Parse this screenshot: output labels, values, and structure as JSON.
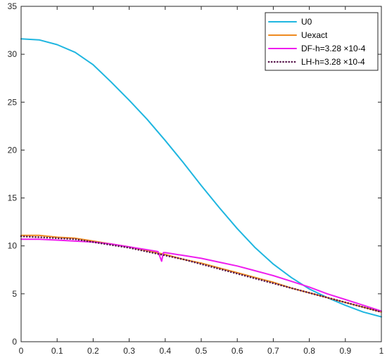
{
  "chart_data": {
    "type": "line",
    "title": "",
    "xlabel": "",
    "ylabel": "",
    "xlim": [
      0,
      1
    ],
    "ylim": [
      0,
      35
    ],
    "xticks": [
      0,
      0.1,
      0.2,
      0.3,
      0.4,
      0.5,
      0.6,
      0.7,
      0.8,
      0.9,
      1
    ],
    "xtick_labels": [
      "0",
      "0.1",
      "0.2",
      "0.3",
      "0.4",
      "0.5",
      "0.6",
      "0.7",
      "0.8",
      "0.9",
      "1"
    ],
    "yticks": [
      0,
      5,
      10,
      15,
      20,
      25,
      30,
      35
    ],
    "ytick_labels": [
      "0",
      "5",
      "10",
      "15",
      "20",
      "25",
      "30",
      "35"
    ],
    "grid": false,
    "legend_position": "top-right",
    "series": [
      {
        "name": "U0",
        "color": "#1fb6e0",
        "line_style": "solid",
        "x": [
          0,
          0.05,
          0.1,
          0.15,
          0.2,
          0.25,
          0.3,
          0.35,
          0.4,
          0.45,
          0.5,
          0.55,
          0.6,
          0.65,
          0.7,
          0.75,
          0.8,
          0.85,
          0.9,
          0.95,
          1
        ],
        "y": [
          31.6,
          31.5,
          31.0,
          30.2,
          28.9,
          27.1,
          25.2,
          23.2,
          21.0,
          18.7,
          16.3,
          14.0,
          11.8,
          9.8,
          8.1,
          6.7,
          5.5,
          4.6,
          3.8,
          3.1,
          2.6
        ]
      },
      {
        "name": "Uexact",
        "color": "#ee8a1f",
        "line_style": "solid",
        "x": [
          0,
          0.05,
          0.1,
          0.15,
          0.2,
          0.25,
          0.3,
          0.35,
          0.4,
          0.45,
          0.5,
          0.55,
          0.6,
          0.65,
          0.7,
          0.75,
          0.8,
          0.85,
          0.9,
          0.95,
          1
        ],
        "y": [
          11.1,
          11.1,
          10.9,
          10.8,
          10.5,
          10.2,
          9.9,
          9.5,
          9.1,
          8.6,
          8.2,
          7.7,
          7.2,
          6.7,
          6.2,
          5.6,
          5.1,
          4.6,
          4.1,
          3.6,
          3.1
        ]
      },
      {
        "name": "DF-h=3.28 ×10-4",
        "color": "#ee1dee",
        "line_style": "solid",
        "x": [
          0,
          0.05,
          0.1,
          0.15,
          0.2,
          0.25,
          0.3,
          0.35,
          0.38,
          0.39,
          0.395,
          0.4,
          0.45,
          0.5,
          0.55,
          0.6,
          0.65,
          0.7,
          0.75,
          0.8,
          0.85,
          0.9,
          0.95,
          1
        ],
        "y": [
          10.7,
          10.7,
          10.6,
          10.5,
          10.4,
          10.2,
          9.9,
          9.6,
          9.4,
          8.4,
          9.3,
          9.3,
          9.0,
          8.7,
          8.3,
          7.9,
          7.4,
          6.9,
          6.3,
          5.7,
          5.0,
          4.4,
          3.8,
          3.2
        ]
      },
      {
        "name": "LH-h=3.28 ×10-4",
        "color": "#5a1a4e",
        "line_style": "dotted",
        "x": [
          0,
          0.05,
          0.1,
          0.15,
          0.2,
          0.25,
          0.3,
          0.35,
          0.4,
          0.45,
          0.5,
          0.55,
          0.6,
          0.65,
          0.7,
          0.75,
          0.8,
          0.85,
          0.9,
          0.95,
          1
        ],
        "y": [
          11.0,
          10.9,
          10.8,
          10.7,
          10.4,
          10.1,
          9.8,
          9.4,
          9.0,
          8.6,
          8.1,
          7.6,
          7.1,
          6.6,
          6.1,
          5.6,
          5.1,
          4.6,
          4.1,
          3.6,
          3.1
        ]
      }
    ]
  }
}
